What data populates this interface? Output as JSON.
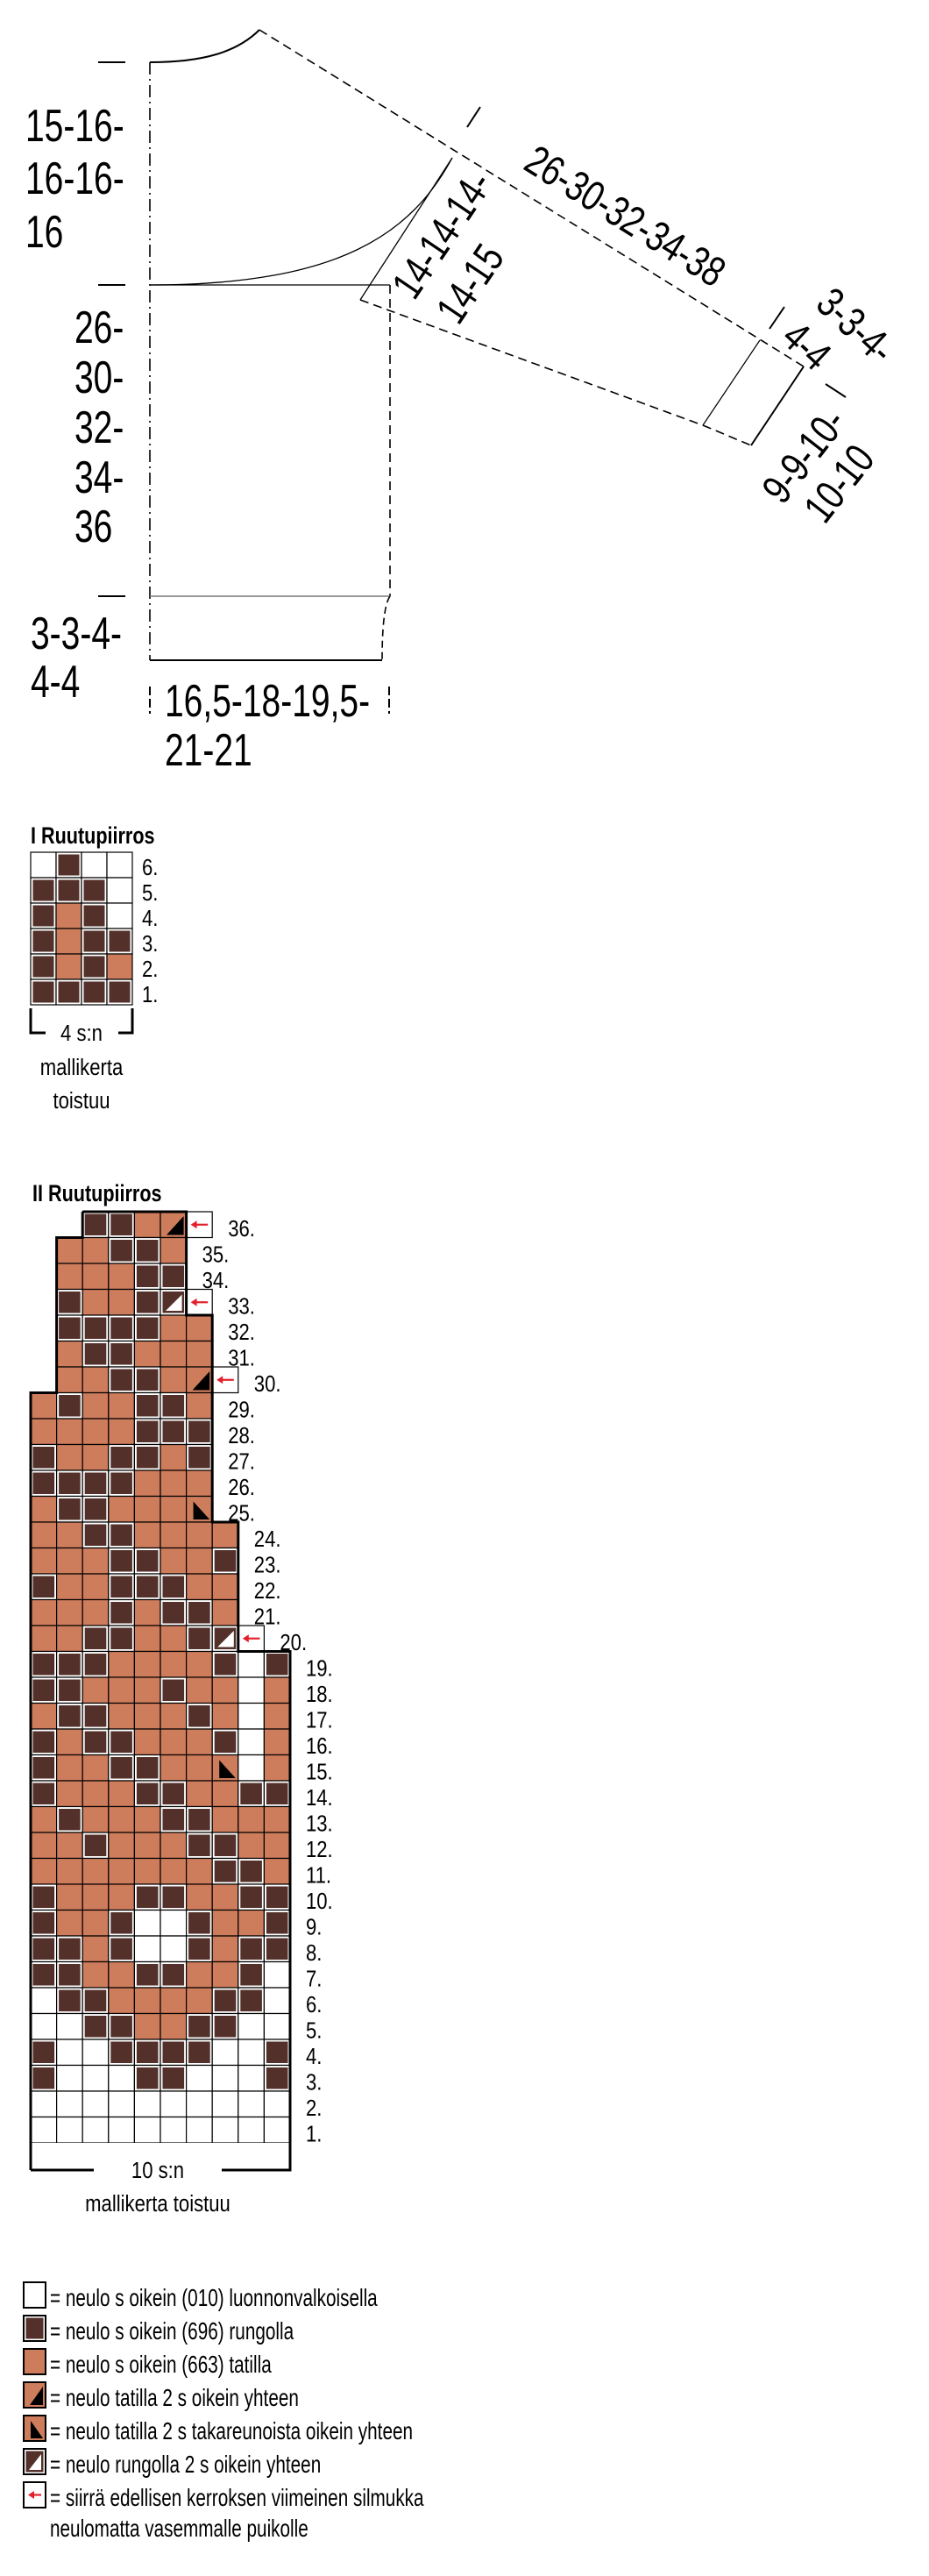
{
  "colors": {
    "white": "#ffffff",
    "dark": "#53312a",
    "orange": "#cd7c5c",
    "black": "#000000",
    "red": "#e3202b"
  },
  "schematic": {
    "yoke_height": [
      "15-16-",
      "16-16-",
      "16"
    ],
    "body_length": [
      "26-",
      "30-",
      "32-",
      "34-",
      "36"
    ],
    "rib_height": [
      "3-3-4-",
      "4-4"
    ],
    "half_width": [
      "16,5-18-19,5-",
      "21-21"
    ],
    "sleeve_length": "26-30-32-34-38",
    "upper_arm": [
      "14-14-14-",
      "14-15"
    ],
    "cuff_height": [
      "3-3-4-",
      "4-4"
    ],
    "cuff_width": [
      "9-9-10-",
      "10-10"
    ]
  },
  "chart1": {
    "title": "I Ruutupiirros",
    "rows_top_to_bottom": [
      "WDWW",
      "DDDW",
      "DODW",
      "DODD",
      "DODO",
      "DDDD"
    ],
    "row_labels_top_to_bottom": [
      "6.",
      "5.",
      "4.",
      "3.",
      "2.",
      "1."
    ],
    "repeat_label": "4 s:n",
    "repeat_text": [
      "mallikerta",
      "toistuu"
    ]
  },
  "chart2": {
    "title": "II Ruutupiirros",
    "rows_top_to_bottom": [
      "  DDOKA",
      " OODDO",
      " OOODD",
      " DOODRA",
      " DDDDOO",
      " ODDOOO",
      " OODDOKA",
      "ODOODDO",
      "OOOODDD",
      "DOODDOD",
      "DDDDOOO",
      "ODDOOOT",
      "OODDOOOO",
      "OOODDOOD",
      "DOODDDOO",
      "OOODODDO",
      "OODDOODRA",
      "DDDOOOOD_D",
      "DDOOODOO_O",
      "ODDOOODO_O",
      "DODDOOOD_O",
      "DOODDOOT_O",
      "DOOODDOODD",
      "ODOOODDOOO",
      "OODOOODDOO",
      "OOOOOOODDO",
      "DOOODDOODD",
      "DOODWWDOOD",
      "DDODWWDODD",
      "DDOODDOODW",
      "WDDOOOODDW",
      "WWDDOODDWW",
      "DWWDDDDWWD",
      "DWWWDDWWWD",
      "WWWWWWWWWW",
      "WWWWWWWWWW"
    ],
    "row_labels_top_to_bottom": [
      "36.",
      "35.",
      "34.",
      "33.",
      "32.",
      "31.",
      "30.",
      "29.",
      "28.",
      "27.",
      "26.",
      "25.",
      "24.",
      "23.",
      "22.",
      "21.",
      "20.",
      "19.",
      "18.",
      "17.",
      "16.",
      "15.",
      "14.",
      "13.",
      "12.",
      "11.",
      "10.",
      "9.",
      "8.",
      "7.",
      "6.",
      "5.",
      "4.",
      "3.",
      "2.",
      "1."
    ],
    "red_labels": [
      "34.",
      "2."
    ],
    "repeat_label": "10 s:n",
    "repeat_text": "mallikerta toistuu"
  },
  "legend": {
    "items": [
      {
        "symbol": "W",
        "text": "= neulo s oikein (010) luonnonvalkoisella"
      },
      {
        "symbol": "D",
        "text": "= neulo s oikein (696) rungolla"
      },
      {
        "symbol": "O",
        "text": "= neulo s oikein (663) tatilla"
      },
      {
        "symbol": "K",
        "text": "= neulo tatilla 2 s oikein yhteen"
      },
      {
        "symbol": "T",
        "text": "= neulo tatilla 2 s takareunoista oikein yhteen"
      },
      {
        "symbol": "R",
        "text": "= neulo rungolla 2 s oikein yhteen"
      },
      {
        "symbol": "A",
        "text": "= siirrä edellisen kerroksen viimeinen silmukka"
      }
    ],
    "continuation": "neulomatta vasemmalle puikolle"
  }
}
